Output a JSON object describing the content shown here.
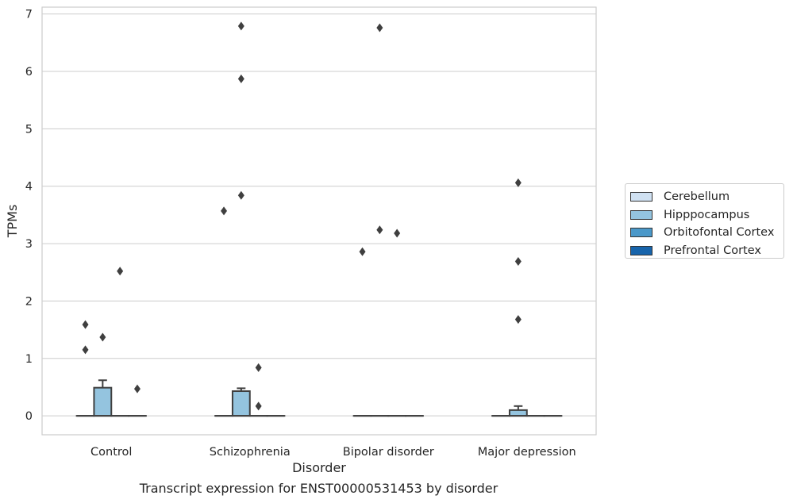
{
  "chart_data": {
    "type": "box",
    "xlabel": "Disorder",
    "ylabel": "TPMs",
    "caption": "Transcript expression for ENST00000531453 by disorder",
    "categories": [
      "Control",
      "Schizophrenia",
      "Bipolar disorder",
      "Major depression"
    ],
    "ylim": [
      -0.33,
      7.12
    ],
    "yticks": [
      0,
      1,
      2,
      3,
      4,
      5,
      6,
      7
    ],
    "grid": "horizontal",
    "legend_position": "right",
    "series": [
      {
        "name": "Cerebellum",
        "color": "#d0e1f2",
        "boxes": [
          {
            "q1": 0,
            "median": 0,
            "q3": 0,
            "whisker_low": 0,
            "whisker_high": 0,
            "outliers": [
              1.59,
              1.15
            ]
          },
          {
            "q1": 0,
            "median": 0,
            "q3": 0,
            "whisker_low": 0,
            "whisker_high": 0,
            "outliers": [
              3.57
            ]
          },
          {
            "q1": 0,
            "median": 0,
            "q3": 0,
            "whisker_low": 0,
            "whisker_high": 0,
            "outliers": [
              2.86
            ]
          },
          {
            "q1": 0,
            "median": 0,
            "q3": 0,
            "whisker_low": 0,
            "whisker_high": 0,
            "outliers": []
          }
        ]
      },
      {
        "name": "Hipppocampus",
        "color": "#94c4df",
        "boxes": [
          {
            "q1": 0,
            "median": 0,
            "q3": 0.49,
            "whisker_low": 0,
            "whisker_high": 0.62,
            "outliers": [
              1.37
            ]
          },
          {
            "q1": 0,
            "median": 0,
            "q3": 0.43,
            "whisker_low": 0,
            "whisker_high": 0.48,
            "outliers": [
              6.79,
              5.87,
              3.84
            ]
          },
          {
            "q1": 0,
            "median": 0,
            "q3": 0,
            "whisker_low": 0,
            "whisker_high": 0,
            "outliers": [
              6.76,
              3.24
            ]
          },
          {
            "q1": 0,
            "median": 0,
            "q3": 0.1,
            "whisker_low": 0,
            "whisker_high": 0.17,
            "outliers": [
              4.06,
              2.69,
              1.68
            ]
          }
        ]
      },
      {
        "name": "Orbitofontal Cortex",
        "color": "#4a98c9",
        "boxes": [
          {
            "q1": 0,
            "median": 0,
            "q3": 0,
            "whisker_low": 0,
            "whisker_high": 0,
            "outliers": [
              2.52
            ]
          },
          {
            "q1": 0,
            "median": 0,
            "q3": 0,
            "whisker_low": 0,
            "whisker_high": 0,
            "outliers": [
              0.84,
              0.17
            ]
          },
          {
            "q1": 0,
            "median": 0,
            "q3": 0,
            "whisker_low": 0,
            "whisker_high": 0,
            "outliers": [
              3.18
            ]
          },
          {
            "q1": 0,
            "median": 0,
            "q3": 0,
            "whisker_low": 0,
            "whisker_high": 0,
            "outliers": []
          }
        ]
      },
      {
        "name": "Prefrontal Cortex",
        "color": "#1764ab",
        "boxes": [
          {
            "q1": 0,
            "median": 0,
            "q3": 0,
            "whisker_low": 0,
            "whisker_high": 0,
            "outliers": [
              0.47
            ]
          },
          {
            "q1": 0,
            "median": 0,
            "q3": 0,
            "whisker_low": 0,
            "whisker_high": 0,
            "outliers": []
          },
          {
            "q1": 0,
            "median": 0,
            "q3": 0,
            "whisker_low": 0,
            "whisker_high": 0,
            "outliers": []
          },
          {
            "q1": 0,
            "median": 0,
            "q3": 0,
            "whisker_low": 0,
            "whisker_high": 0,
            "outliers": []
          }
        ]
      }
    ]
  }
}
